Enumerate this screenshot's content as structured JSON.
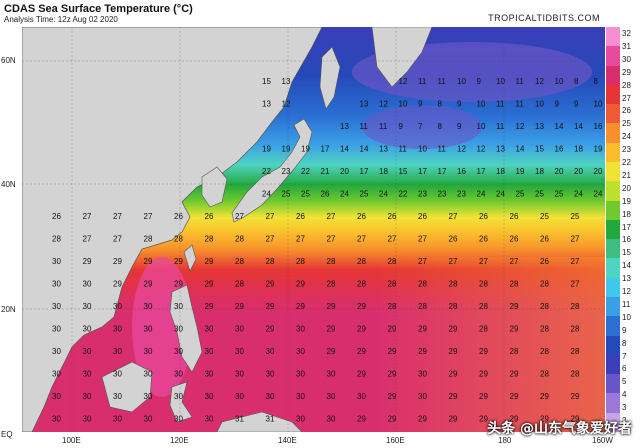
{
  "title": "CDAS Sea Surface Temperature (°C)",
  "subtitle": "Analysis Time: 12z Aug 02 2020",
  "brand": "TROPICALTIDBITS.COM",
  "watermark": "头条 @山东气象爱好者",
  "lat_labels": [
    "60N",
    "40N",
    "20N",
    "EQ"
  ],
  "lon_labels": [
    "100E",
    "120E",
    "140E",
    "160E",
    "180",
    "160W"
  ],
  "colorbar": {
    "labels": [
      "32",
      "31",
      "30",
      "29",
      "28",
      "27",
      "26",
      "25",
      "24",
      "23",
      "22",
      "21",
      "20",
      "19",
      "18",
      "17",
      "16",
      "15",
      "14",
      "13",
      "12",
      "11",
      "10",
      "9",
      "8",
      "7",
      "6",
      "5",
      "4",
      "3",
      "2"
    ],
    "colors": [
      "#f68fd0",
      "#e84aa0",
      "#d92e6e",
      "#e53535",
      "#f05a36",
      "#f7902c",
      "#fbbd2e",
      "#f2e235",
      "#bde02e",
      "#6fc92f",
      "#22a83c",
      "#3dbd7f",
      "#4fd3c3",
      "#3fc8ea",
      "#3aa0e6",
      "#2b6fd3",
      "#2449b8",
      "#3b3eb8",
      "#6a55c8",
      "#9b78d8",
      "#c7a3e8"
    ]
  },
  "land": {
    "color": "#d3d3d3"
  },
  "value_grid": [
    [
      "15",
      "13",
      "",
      "",
      "",
      "",
      "",
      "12",
      "11",
      "11",
      "10",
      "9",
      "10",
      "11",
      "12",
      "10",
      "8",
      "8"
    ],
    [
      "13",
      "12",
      "",
      "",
      "",
      "13",
      "12",
      "10",
      "9",
      "8",
      "9",
      "10",
      "11",
      "11",
      "10",
      "9",
      "9",
      "10"
    ],
    [
      "",
      "",
      "",
      "",
      "13",
      "11",
      "11",
      "9",
      "7",
      "8",
      "9",
      "10",
      "11",
      "12",
      "13",
      "14",
      "14",
      "16"
    ],
    [
      "19",
      "19",
      "19",
      "17",
      "14",
      "14",
      "13",
      "11",
      "10",
      "11",
      "12",
      "12",
      "13",
      "14",
      "15",
      "16",
      "18",
      "19"
    ],
    [
      "22",
      "23",
      "22",
      "21",
      "20",
      "17",
      "18",
      "15",
      "17",
      "17",
      "16",
      "17",
      "18",
      "19",
      "18",
      "20",
      "20",
      "20"
    ],
    [
      "24",
      "25",
      "25",
      "26",
      "24",
      "25",
      "24",
      "22",
      "23",
      "23",
      "23",
      "24",
      "24",
      "25",
      "25",
      "25",
      "24",
      "24"
    ],
    [
      "26",
      "27",
      "27",
      "27",
      "26",
      "26",
      "27",
      "27",
      "26",
      "27",
      "26",
      "26",
      "26",
      "27",
      "26",
      "26",
      "25",
      "25"
    ],
    [
      "28",
      "27",
      "27",
      "28",
      "28",
      "28",
      "28",
      "27",
      "27",
      "27",
      "27",
      "27",
      "27",
      "26",
      "26",
      "26",
      "26",
      "27"
    ],
    [
      "30",
      "29",
      "29",
      "29",
      "29",
      "29",
      "28",
      "28",
      "28",
      "28",
      "28",
      "28",
      "27",
      "27",
      "27",
      "27",
      "26",
      "27"
    ],
    [
      "30",
      "30",
      "29",
      "29",
      "29",
      "29",
      "28",
      "29",
      "29",
      "28",
      "28",
      "28",
      "28",
      "28",
      "28",
      "28",
      "28",
      "27"
    ],
    [
      "30",
      "30",
      "30",
      "30",
      "30",
      "29",
      "29",
      "29",
      "29",
      "29",
      "29",
      "28",
      "28",
      "28",
      "28",
      "29",
      "28",
      "28"
    ],
    [
      "30",
      "30",
      "30",
      "30",
      "30",
      "30",
      "30",
      "29",
      "30",
      "29",
      "29",
      "29",
      "29",
      "29",
      "28",
      "29",
      "28",
      "28"
    ],
    [
      "30",
      "30",
      "30",
      "30",
      "30",
      "30",
      "30",
      "30",
      "30",
      "29",
      "29",
      "29",
      "29",
      "29",
      "29",
      "28",
      "28",
      "28"
    ],
    [
      "30",
      "30",
      "30",
      "30",
      "30",
      "30",
      "30",
      "30",
      "30",
      "30",
      "29",
      "29",
      "30",
      "29",
      "29",
      "29",
      "28",
      "28"
    ],
    [
      "30",
      "30",
      "30",
      "30",
      "30",
      "30",
      "30",
      "30",
      "30",
      "30",
      "30",
      "29",
      "30",
      "29",
      "29",
      "29",
      "29",
      "29"
    ],
    [
      "30",
      "30",
      "30",
      "30",
      "30",
      "30",
      "31",
      "31",
      "30",
      "30",
      "29",
      "29",
      "29",
      "29",
      "29",
      "29",
      "29",
      "29"
    ],
    [
      "30",
      "30",
      "30",
      "30",
      "30",
      "30",
      "30",
      "30",
      "30",
      "30",
      "30",
      "30",
      "29",
      "29",
      "29",
      "29",
      "29",
      "29"
    ]
  ]
}
